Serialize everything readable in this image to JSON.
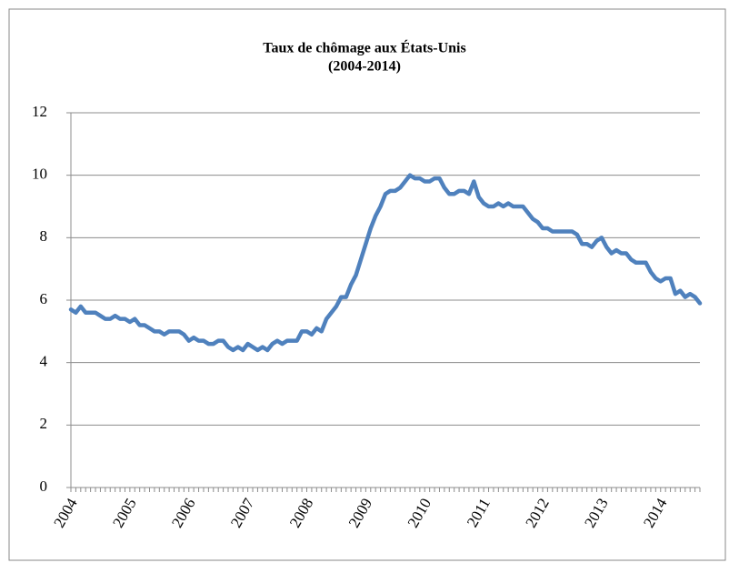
{
  "chart_data": {
    "type": "line",
    "title": "Taux de chômage aux États-Unis",
    "subtitle": "(2004-2014)",
    "categories": [
      "2004",
      null,
      null,
      null,
      null,
      null,
      null,
      null,
      null,
      null,
      null,
      null,
      "2005",
      null,
      null,
      null,
      null,
      null,
      null,
      null,
      null,
      null,
      null,
      null,
      "2006",
      null,
      null,
      null,
      null,
      null,
      null,
      null,
      null,
      null,
      null,
      null,
      "2007",
      null,
      null,
      null,
      null,
      null,
      null,
      null,
      null,
      null,
      null,
      null,
      "2008",
      null,
      null,
      null,
      null,
      null,
      null,
      null,
      null,
      null,
      null,
      null,
      "2009",
      null,
      null,
      null,
      null,
      null,
      null,
      null,
      null,
      null,
      null,
      null,
      "2010",
      null,
      null,
      null,
      null,
      null,
      null,
      null,
      null,
      null,
      null,
      null,
      "2011",
      null,
      null,
      null,
      null,
      null,
      null,
      null,
      null,
      null,
      null,
      null,
      "2012",
      null,
      null,
      null,
      null,
      null,
      null,
      null,
      null,
      null,
      null,
      null,
      "2013",
      null,
      null,
      null,
      null,
      null,
      null,
      null,
      null,
      null,
      null,
      null,
      "2014",
      null,
      null,
      null,
      null,
      null,
      null,
      null,
      null
    ],
    "series": [
      {
        "color": "#4f81bd",
        "values": [
          5.7,
          5.6,
          5.8,
          5.6,
          5.6,
          5.6,
          5.5,
          5.4,
          5.4,
          5.5,
          5.4,
          5.4,
          5.3,
          5.4,
          5.2,
          5.2,
          5.1,
          5.0,
          5.0,
          4.9,
          5.0,
          5.0,
          5.0,
          4.9,
          4.7,
          4.8,
          4.7,
          4.7,
          4.6,
          4.6,
          4.7,
          4.7,
          4.5,
          4.4,
          4.5,
          4.4,
          4.6,
          4.5,
          4.4,
          4.5,
          4.4,
          4.6,
          4.7,
          4.6,
          4.7,
          4.7,
          4.7,
          5.0,
          5.0,
          4.9,
          5.1,
          5.0,
          5.4,
          5.6,
          5.8,
          6.1,
          6.1,
          6.5,
          6.8,
          7.3,
          7.8,
          8.3,
          8.7,
          9.0,
          9.4,
          9.5,
          9.5,
          9.6,
          9.8,
          10.0,
          9.9,
          9.9,
          9.8,
          9.8,
          9.9,
          9.9,
          9.6,
          9.4,
          9.4,
          9.5,
          9.5,
          9.4,
          9.8,
          9.3,
          9.1,
          9.0,
          9.0,
          9.1,
          9.0,
          9.1,
          9.0,
          9.0,
          9.0,
          8.8,
          8.6,
          8.5,
          8.3,
          8.3,
          8.2,
          8.2,
          8.2,
          8.2,
          8.2,
          8.1,
          7.8,
          7.8,
          7.7,
          7.9,
          8.0,
          7.7,
          7.5,
          7.6,
          7.5,
          7.5,
          7.3,
          7.2,
          7.2,
          7.2,
          6.9,
          6.7,
          6.6,
          6.7,
          6.7,
          6.2,
          6.3,
          6.1,
          6.2,
          6.1,
          5.9
        ]
      }
    ],
    "ylim": [
      0,
      12
    ],
    "yticks": [
      0,
      2,
      4,
      6,
      8,
      10,
      12
    ],
    "grid": true
  }
}
